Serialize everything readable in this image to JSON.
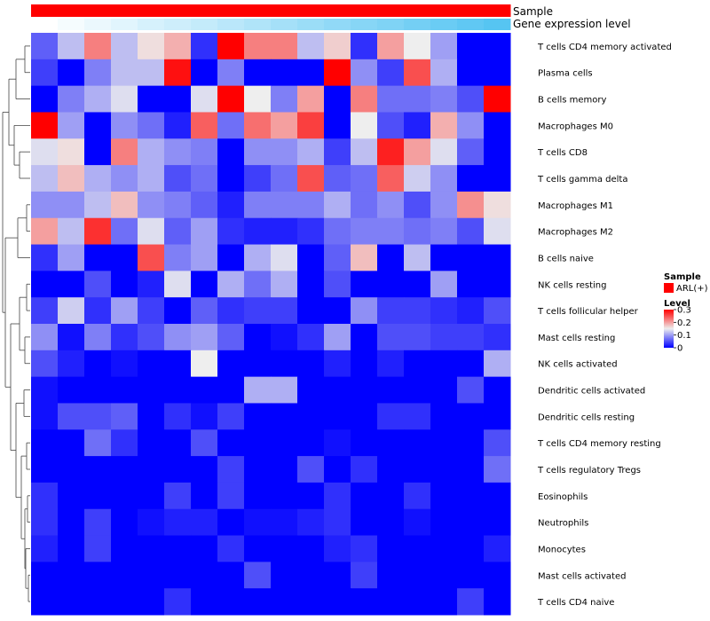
{
  "chart_data": {
    "type": "heatmap",
    "title": "",
    "annotations": [
      {
        "name": "Sample",
        "kind": "categorical",
        "color": "#ff0000"
      },
      {
        "name": "Gene expression level",
        "kind": "gradient",
        "color_low": "#ffffff",
        "color_high": "#56c5f2"
      }
    ],
    "rows": [
      "T cells CD4 memory activated",
      "Plasma cells",
      "B cells memory",
      "Macrophages M0",
      "T cells CD8",
      "T cells gamma delta",
      "Macrophages M1",
      "Macrophages M2",
      "B cells naive",
      "NK cells resting",
      "T cells follicular helper",
      "Mast cells resting",
      "NK cells activated",
      "Dendritic cells activated",
      "Dendritic cells resting",
      "T cells CD4 memory resting",
      "T cells regulatory  Tregs",
      "Eosinophils",
      "Neutrophils",
      "Monocytes",
      "Mast cells activated",
      "T cells CD4 naive"
    ],
    "n_columns": 18,
    "values": [
      [
        0.06,
        0.12,
        0.22,
        0.12,
        0.16,
        0.19,
        0.03,
        0.3,
        0.22,
        0.22,
        0.12,
        0.17,
        0.03,
        0.2,
        0.15,
        0.1,
        0.0,
        0.0
      ],
      [
        0.04,
        0.0,
        0.08,
        0.12,
        0.12,
        0.29,
        0.0,
        0.08,
        0.0,
        0.0,
        0.0,
        0.3,
        0.09,
        0.04,
        0.25,
        0.11,
        0.0,
        0.0
      ],
      [
        0.0,
        0.08,
        0.11,
        0.14,
        0.0,
        0.0,
        0.14,
        0.3,
        0.15,
        0.08,
        0.2,
        0.0,
        0.22,
        0.07,
        0.07,
        0.08,
        0.05,
        0.3
      ],
      [
        0.3,
        0.1,
        0.0,
        0.09,
        0.07,
        0.02,
        0.24,
        0.07,
        0.23,
        0.2,
        0.26,
        0.0,
        0.15,
        0.05,
        0.02,
        0.19,
        0.09,
        0.0
      ],
      [
        0.14,
        0.16,
        0.0,
        0.22,
        0.11,
        0.09,
        0.08,
        0.0,
        0.09,
        0.09,
        0.11,
        0.04,
        0.12,
        0.28,
        0.2,
        0.14,
        0.06,
        0.0
      ],
      [
        0.12,
        0.18,
        0.11,
        0.09,
        0.11,
        0.05,
        0.07,
        0.0,
        0.04,
        0.07,
        0.25,
        0.06,
        0.07,
        0.24,
        0.13,
        0.09,
        0.0,
        0.0
      ],
      [
        0.09,
        0.09,
        0.12,
        0.18,
        0.09,
        0.08,
        0.06,
        0.02,
        0.08,
        0.08,
        0.08,
        0.11,
        0.07,
        0.09,
        0.05,
        0.09,
        0.21,
        0.16
      ],
      [
        0.2,
        0.12,
        0.27,
        0.07,
        0.14,
        0.06,
        0.1,
        0.03,
        0.02,
        0.02,
        0.03,
        0.07,
        0.08,
        0.08,
        0.07,
        0.08,
        0.05,
        0.14
      ],
      [
        0.03,
        0.1,
        0.0,
        0.0,
        0.25,
        0.08,
        0.1,
        0.0,
        0.11,
        0.14,
        0.0,
        0.06,
        0.18,
        0.0,
        0.12,
        0.0,
        0.0,
        0.0
      ],
      [
        0.0,
        0.0,
        0.05,
        0.0,
        0.02,
        0.14,
        0.0,
        0.11,
        0.07,
        0.11,
        0.0,
        0.05,
        0.0,
        0.0,
        0.0,
        0.1,
        0.0,
        0.0
      ],
      [
        0.04,
        0.13,
        0.03,
        0.1,
        0.04,
        0.0,
        0.06,
        0.03,
        0.04,
        0.04,
        0.0,
        0.0,
        0.09,
        0.04,
        0.04,
        0.03,
        0.02,
        0.05
      ],
      [
        0.09,
        0.01,
        0.08,
        0.03,
        0.05,
        0.09,
        0.1,
        0.06,
        0.0,
        0.01,
        0.03,
        0.1,
        0.0,
        0.05,
        0.05,
        0.04,
        0.04,
        0.03
      ],
      [
        0.05,
        0.02,
        0.0,
        0.01,
        0.0,
        0.0,
        0.15,
        0.0,
        0.0,
        0.0,
        0.0,
        0.02,
        0.0,
        0.02,
        0.0,
        0.0,
        0.0,
        0.11
      ],
      [
        0.01,
        0.0,
        0.0,
        0.0,
        0.0,
        0.0,
        0.0,
        0.0,
        0.11,
        0.11,
        0.0,
        0.0,
        0.0,
        0.0,
        0.0,
        0.0,
        0.05,
        0.0
      ],
      [
        0.01,
        0.05,
        0.05,
        0.06,
        0.0,
        0.03,
        0.01,
        0.04,
        0.0,
        0.0,
        0.0,
        0.0,
        0.0,
        0.03,
        0.03,
        0.0,
        0.0,
        0.0
      ],
      [
        0.0,
        0.0,
        0.07,
        0.03,
        0.0,
        0.0,
        0.05,
        0.0,
        0.0,
        0.0,
        0.0,
        0.01,
        0.0,
        0.0,
        0.0,
        0.0,
        0.0,
        0.05
      ],
      [
        0.0,
        0.0,
        0.0,
        0.0,
        0.0,
        0.0,
        0.0,
        0.04,
        0.0,
        0.0,
        0.05,
        0.0,
        0.03,
        0.0,
        0.0,
        0.0,
        0.0,
        0.07
      ],
      [
        0.03,
        0.0,
        0.0,
        0.0,
        0.0,
        0.04,
        0.0,
        0.04,
        0.0,
        0.0,
        0.0,
        0.03,
        0.0,
        0.0,
        0.03,
        0.0,
        0.0,
        0.0
      ],
      [
        0.03,
        0.0,
        0.04,
        0.0,
        0.01,
        0.02,
        0.02,
        0.0,
        0.01,
        0.01,
        0.02,
        0.03,
        0.0,
        0.0,
        0.01,
        0.0,
        0.0,
        0.0
      ],
      [
        0.02,
        0.0,
        0.04,
        0.0,
        0.0,
        0.0,
        0.0,
        0.03,
        0.0,
        0.0,
        0.0,
        0.02,
        0.03,
        0.0,
        0.0,
        0.0,
        0.0,
        0.02
      ],
      [
        0.0,
        0.0,
        0.0,
        0.0,
        0.0,
        0.0,
        0.0,
        0.0,
        0.05,
        0.0,
        0.0,
        0.0,
        0.04,
        0.0,
        0.0,
        0.0,
        0.0,
        0.0
      ],
      [
        0.0,
        0.0,
        0.0,
        0.0,
        0.0,
        0.03,
        0.0,
        0.0,
        0.0,
        0.0,
        0.0,
        0.0,
        0.0,
        0.0,
        0.0,
        0.0,
        0.04,
        0.0
      ]
    ],
    "gene_expression_level": [
      0.0,
      0.06,
      0.12,
      0.18,
      0.24,
      0.29,
      0.35,
      0.41,
      0.47,
      0.53,
      0.59,
      0.65,
      0.71,
      0.76,
      0.82,
      0.88,
      0.94,
      1.0
    ],
    "legend": {
      "sample_title": "Sample",
      "sample_entry": "ARL(+)",
      "level_title": "Level",
      "level_ticks": [
        "0.3",
        "0.2",
        "0.1",
        "0"
      ],
      "level_tick_values": [
        0.3,
        0.2,
        0.1,
        0
      ],
      "level_range": [
        0,
        0.3
      ],
      "placement": "right"
    },
    "colorscale": {
      "low": "#0000ff",
      "mid": "#eeeeee",
      "high": "#ff0000",
      "mid_value": 0.15
    }
  }
}
